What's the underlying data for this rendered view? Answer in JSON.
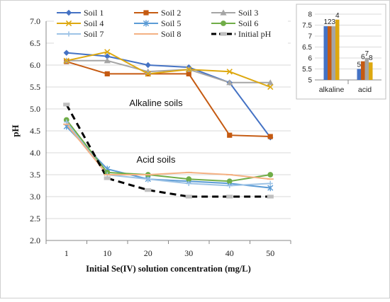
{
  "chart_data": [
    {
      "type": "line",
      "xlabel": "Initial Se(IV) solution concentration  (mg/L)",
      "ylabel": "pH",
      "categories": [
        "1",
        "10",
        "20",
        "30",
        "40",
        "50"
      ],
      "ylim": [
        2.0,
        7.0
      ],
      "yticks": [
        "2.0",
        "2.5",
        "3.0",
        "3.5",
        "4.0",
        "4.5",
        "5.0",
        "5.5",
        "6.0",
        "6.5",
        "7.0"
      ],
      "grid": true,
      "legend_position": "top-left",
      "annotations": [
        "Alkaline soils",
        "Acid soils"
      ],
      "series": [
        {
          "name": "Soil 1",
          "color": "#4472C4",
          "marker": "diamond",
          "values": [
            6.28,
            6.2,
            6.0,
            5.95,
            5.6,
            4.35
          ]
        },
        {
          "name": "Soil 2",
          "color": "#C55A11",
          "marker": "square",
          "values": [
            6.08,
            5.8,
            5.8,
            5.8,
            4.4,
            4.37
          ]
        },
        {
          "name": "Soil 3",
          "color": "#A5A5A5",
          "marker": "triangle",
          "values": [
            6.1,
            6.1,
            5.85,
            5.9,
            5.6,
            5.6
          ]
        },
        {
          "name": "Soil 4",
          "color": "#DDA80F",
          "marker": "x",
          "values": [
            6.1,
            6.3,
            5.8,
            5.9,
            5.85,
            5.5
          ]
        },
        {
          "name": "Soil 5",
          "color": "#5B9BD5",
          "marker": "star",
          "values": [
            4.6,
            3.63,
            3.4,
            3.35,
            3.3,
            3.2
          ]
        },
        {
          "name": "Soil 6",
          "color": "#70AD47",
          "marker": "circle",
          "values": [
            4.75,
            3.55,
            3.5,
            3.4,
            3.35,
            3.5
          ]
        },
        {
          "name": "Soil 7",
          "color": "#9DC3E6",
          "marker": "plus",
          "values": [
            4.7,
            3.5,
            3.4,
            3.3,
            3.25,
            3.3
          ]
        },
        {
          "name": "Soil 8",
          "color": "#F4B183",
          "marker": "dash",
          "values": [
            4.65,
            3.5,
            3.5,
            3.55,
            3.5,
            3.4
          ]
        },
        {
          "name": "Initial pH",
          "color": "#000000",
          "marker": "square-gray",
          "dashed": true,
          "values": [
            5.1,
            3.42,
            3.15,
            3.0,
            3.0,
            3.0
          ]
        }
      ]
    },
    {
      "type": "bar",
      "categories": [
        "alkaline",
        "acid"
      ],
      "ylim": [
        5,
        8
      ],
      "yticks": [
        "5",
        "5.5",
        "6",
        "6.5",
        "7",
        "7.5",
        "8"
      ],
      "grid": true,
      "series": [
        {
          "color": "#4472C4",
          "values": [
            7.45,
            5.5
          ]
        },
        {
          "color": "#C55A11",
          "values": [
            7.45,
            5.85
          ]
        },
        {
          "color": "#A5A5A5",
          "values": [
            7.45,
            6.0
          ]
        },
        {
          "color": "#DDA80F",
          "values": [
            7.75,
            5.8
          ]
        }
      ],
      "bar_labels": [
        [
          "1",
          "2",
          "3",
          "4"
        ],
        [
          "5",
          "6",
          "7",
          "8"
        ]
      ]
    }
  ]
}
